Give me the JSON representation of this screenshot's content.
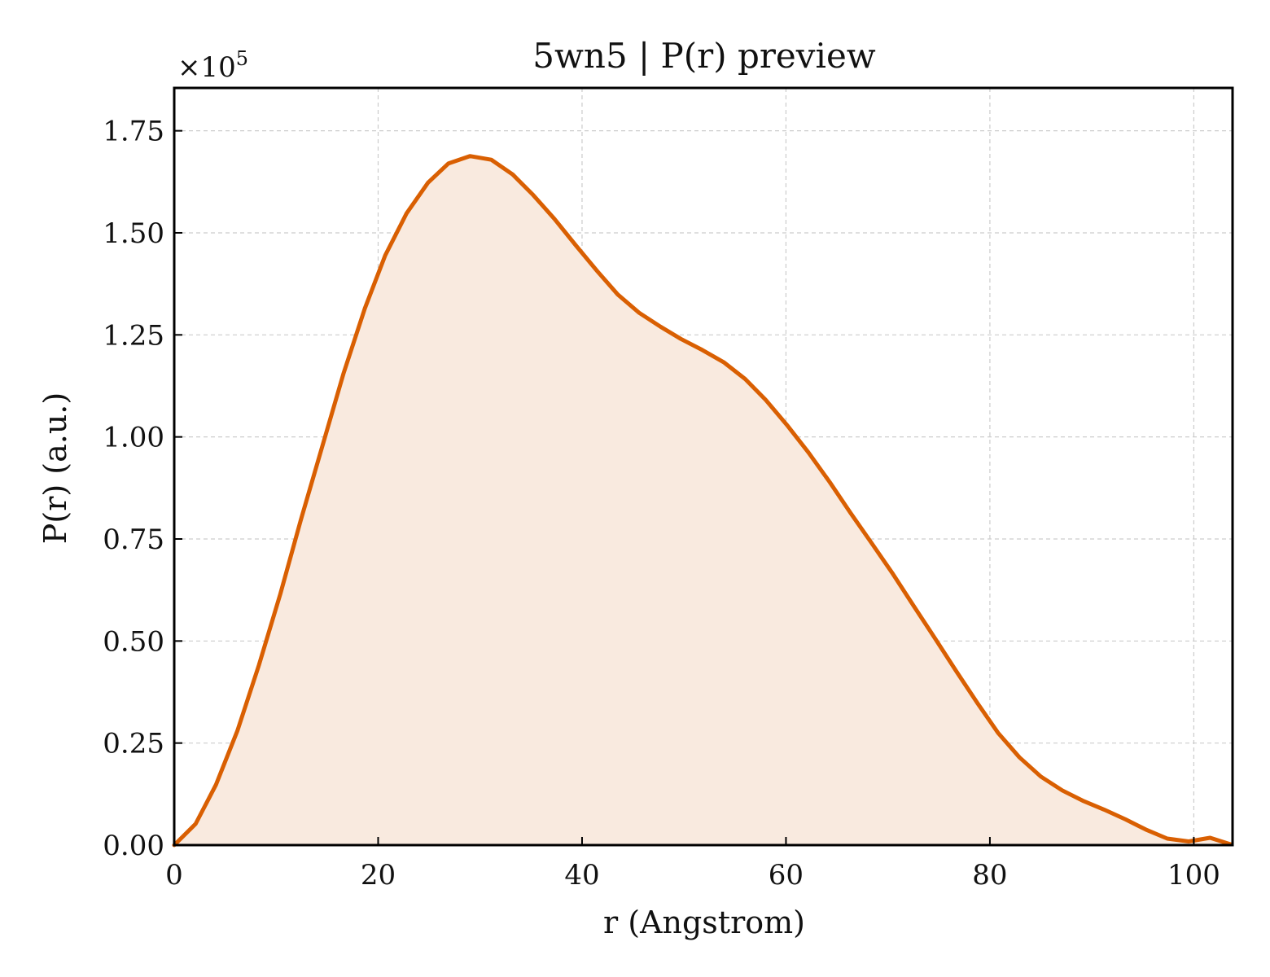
{
  "chart_data": {
    "type": "area",
    "title": "5wn5 | P(r) preview",
    "xlabel": "r (Angstrom)",
    "ylabel": "P(r) (a.u.)",
    "y_multiplier_base": "×10",
    "y_multiplier_exp": "5",
    "xlim": [
      0,
      103.8
    ],
    "ylim": [
      0,
      1.855
    ],
    "xticks": [
      0,
      20,
      40,
      60,
      80,
      100
    ],
    "xtick_labels": [
      "0",
      "20",
      "40",
      "60",
      "80",
      "100"
    ],
    "yticks": [
      0,
      0.25,
      0.5,
      0.75,
      1.0,
      1.25,
      1.5,
      1.75
    ],
    "ytick_labels": [
      "0.00",
      "0.25",
      "0.50",
      "0.75",
      "1.00",
      "1.25",
      "1.50",
      "1.75"
    ],
    "grid": true,
    "line_color": "#d95f02",
    "fill_color": "#f9eadf",
    "series": [
      {
        "x": [
          0,
          2.1,
          4.1,
          6.2,
          8.3,
          10.4,
          12.4,
          14.5,
          16.6,
          18.7,
          20.7,
          22.8,
          24.9,
          26.9,
          29.0,
          31.1,
          33.2,
          35.2,
          37.3,
          39.4,
          41.5,
          43.5,
          45.6,
          47.7,
          49.7,
          51.8,
          53.9,
          56.0,
          58.0,
          60.1,
          62.2,
          64.3,
          66.3,
          68.4,
          70.5,
          72.5,
          74.6,
          76.7,
          78.8,
          80.8,
          82.9,
          85.0,
          87.1,
          89.1,
          91.2,
          93.3,
          95.3,
          97.4,
          99.5,
          101.6,
          103.6
        ],
        "y": [
          0.0,
          0.052,
          0.148,
          0.28,
          0.44,
          0.615,
          0.795,
          0.975,
          1.155,
          1.315,
          1.445,
          1.548,
          1.623,
          1.67,
          1.688,
          1.679,
          1.643,
          1.593,
          1.534,
          1.469,
          1.406,
          1.349,
          1.304,
          1.27,
          1.24,
          1.213,
          1.183,
          1.142,
          1.091,
          1.029,
          0.962,
          0.889,
          0.815,
          0.74,
          0.664,
          0.587,
          0.507,
          0.426,
          0.347,
          0.275,
          0.215,
          0.168,
          0.134,
          0.109,
          0.087,
          0.063,
          0.038,
          0.016,
          0.009,
          0.018,
          0.002
        ]
      }
    ]
  }
}
